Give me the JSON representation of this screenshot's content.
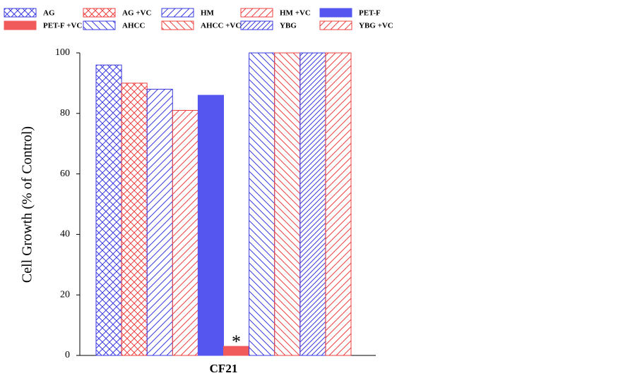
{
  "chart_data": {
    "type": "bar",
    "y_label": "Cell Growth (% of Control)",
    "categories": [
      "CF21"
    ],
    "series": [
      {
        "name": "AG",
        "color": "#3b3be0",
        "hatch": "cross",
        "values": [
          96
        ]
      },
      {
        "name": "AG +VC",
        "color": "#ee4040",
        "hatch": "cross",
        "values": [
          90
        ]
      },
      {
        "name": "HM",
        "color": "#3b3be0",
        "hatch": "forward",
        "values": [
          88
        ]
      },
      {
        "name": "HM +VC",
        "color": "#ee4040",
        "hatch": "forward",
        "values": [
          81
        ]
      },
      {
        "name": "PET-F",
        "color": "#5555f0",
        "hatch": "solid",
        "values": [
          86
        ]
      },
      {
        "name": "PET-F +VC",
        "color": "#f05a5a",
        "hatch": "solid",
        "values": [
          3
        ]
      },
      {
        "name": "AHCC",
        "color": "#3b3be0",
        "hatch": "backward",
        "values": [
          100
        ]
      },
      {
        "name": "AHCC +VC",
        "color": "#ee4040",
        "hatch": "backward",
        "values": [
          100
        ]
      },
      {
        "name": "YBG",
        "color": "#3b3be0",
        "hatch": "dense-forward",
        "values": [
          100
        ]
      },
      {
        "name": "YBG +VC",
        "color": "#ee4040",
        "hatch": "forward",
        "values": [
          100
        ]
      }
    ],
    "annotation": {
      "text": "*",
      "series": 5
    },
    "ylim": [
      0,
      100
    ],
    "yticks": [
      0,
      20,
      40,
      60,
      80,
      100
    ],
    "grid": false
  }
}
